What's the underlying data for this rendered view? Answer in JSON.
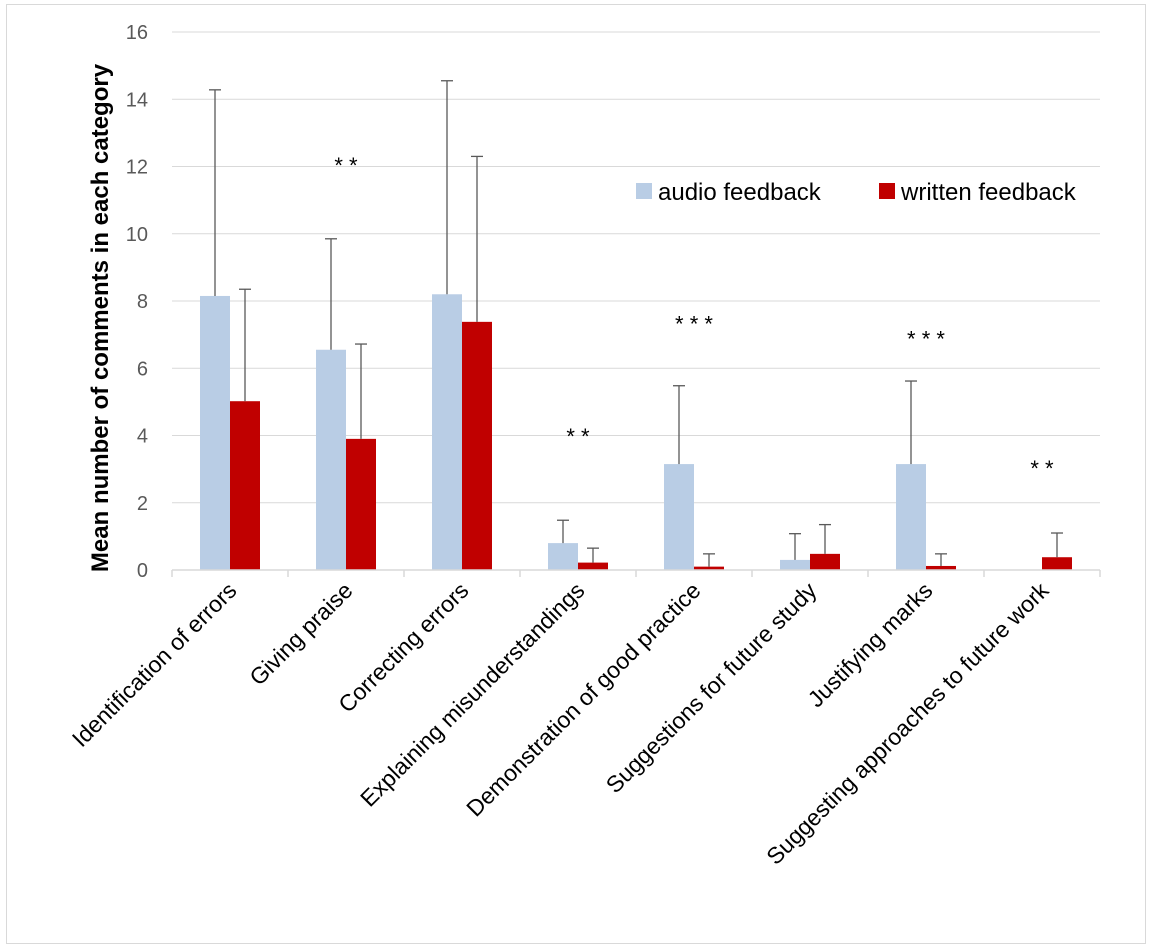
{
  "chart_data": {
    "type": "bar",
    "title": "",
    "xlabel": "",
    "ylabel": "Mean number of comments in each category",
    "ylim": [
      0,
      16
    ],
    "yticks": [
      0,
      2,
      4,
      6,
      8,
      10,
      12,
      14,
      16
    ],
    "grid": true,
    "legend_position": "top-right",
    "categories": [
      "Identification of errors",
      "Giving praise",
      "Correcting errors",
      "Explaining misunderstandings",
      "Demonstration of good practice",
      "Suggestions for future study",
      "Justifying marks",
      "Suggesting approaches to future work"
    ],
    "series": [
      {
        "name": "audio feedback",
        "color": "#b9cde5",
        "values": [
          8.15,
          6.55,
          8.2,
          0.8,
          3.15,
          0.3,
          3.15,
          0
        ],
        "error_upper": [
          14.28,
          9.85,
          14.55,
          1.48,
          5.48,
          1.08,
          5.62,
          null
        ]
      },
      {
        "name": "written feedback",
        "color": "#c00000",
        "values": [
          5.02,
          3.9,
          7.38,
          0.22,
          0.1,
          0.48,
          0.12,
          0.38
        ],
        "error_upper": [
          8.35,
          6.72,
          12.3,
          0.65,
          0.48,
          1.35,
          0.48,
          1.1
        ]
      }
    ],
    "significance": [
      {
        "category_index": 1,
        "label": "* *",
        "y": 11.8
      },
      {
        "category_index": 3,
        "label": "* *",
        "y": 3.75
      },
      {
        "category_index": 4,
        "label": "* * *",
        "y": 7.1
      },
      {
        "category_index": 6,
        "label": "* * *",
        "y": 6.65
      },
      {
        "category_index": 7,
        "label": "* *",
        "y": 2.8
      }
    ]
  }
}
